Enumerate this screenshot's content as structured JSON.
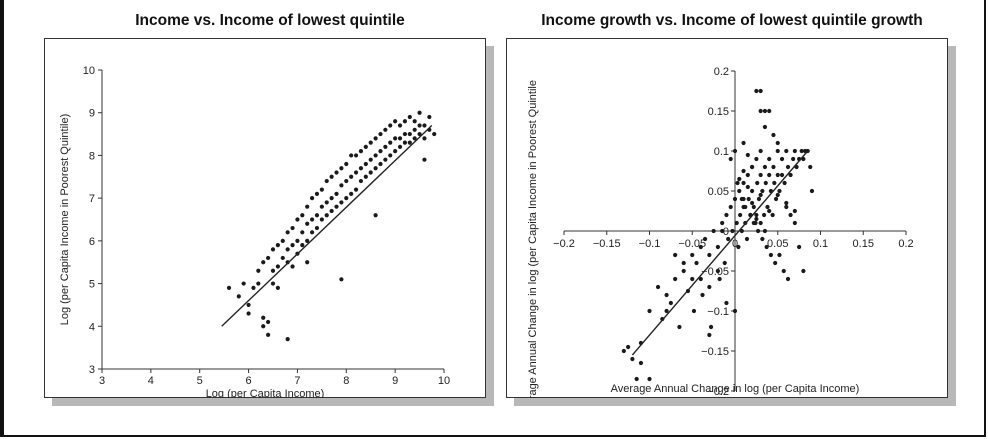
{
  "panels": [
    {
      "title": "Income vs. Income of lowest quintile"
    },
    {
      "title": "Income growth vs. Income of lowest quintile growth"
    }
  ],
  "chart_data": [
    {
      "type": "scatter",
      "title": "Income vs. Income of lowest quintile",
      "xlabel": "Log (per Capita Income)",
      "ylabel": "Log (per Capita Income in Poorest Quintile)",
      "xlim": [
        3,
        10
      ],
      "ylim": [
        3,
        10
      ],
      "xticks": [
        "3",
        "4",
        "5",
        "6",
        "7",
        "8",
        "9",
        "10"
      ],
      "yticks": [
        "3",
        "4",
        "5",
        "6",
        "7",
        "8",
        "9",
        "10"
      ],
      "grid": false,
      "fit_line": [
        [
          5.45,
          4.0
        ],
        [
          9.75,
          8.7
        ]
      ],
      "series": [
        {
          "x": [
            5.6,
            5.8,
            5.9,
            6.0,
            6.1,
            6.2,
            6.2,
            6.3,
            6.3,
            6.4,
            6.4,
            6.5,
            6.5,
            6.5,
            6.6,
            6.6,
            6.7,
            6.7,
            6.8,
            6.8,
            6.8,
            6.9,
            6.9,
            6.9,
            7.0,
            7.0,
            7.0,
            7.1,
            7.1,
            7.1,
            7.2,
            7.2,
            7.2,
            7.3,
            7.3,
            7.3,
            7.4,
            7.4,
            7.4,
            7.5,
            7.5,
            7.5,
            7.6,
            7.6,
            7.6,
            7.7,
            7.7,
            7.7,
            7.8,
            7.8,
            7.8,
            7.9,
            7.9,
            7.9,
            8.0,
            8.0,
            8.0,
            8.1,
            8.1,
            8.1,
            8.2,
            8.2,
            8.2,
            8.3,
            8.3,
            8.3,
            8.4,
            8.4,
            8.4,
            8.5,
            8.5,
            8.5,
            8.6,
            8.6,
            8.6,
            8.7,
            8.7,
            8.7,
            8.8,
            8.8,
            8.8,
            8.9,
            8.9,
            8.9,
            9.0,
            9.0,
            9.0,
            9.1,
            9.1,
            9.1,
            9.2,
            9.2,
            9.2,
            9.3,
            9.3,
            9.3,
            9.4,
            9.4,
            9.4,
            9.5,
            9.5,
            9.5,
            9.6,
            9.6,
            9.7,
            9.7,
            9.8,
            6.3,
            6.4,
            6.8,
            7.9,
            6.0,
            6.6,
            7.2,
            8.6,
            9.6
          ],
          "y": [
            4.9,
            4.7,
            5.0,
            4.5,
            4.9,
            5.3,
            5.0,
            4.2,
            5.5,
            4.1,
            5.6,
            5.3,
            5.8,
            5.0,
            5.4,
            5.9,
            5.6,
            6.0,
            5.5,
            6.2,
            5.8,
            5.9,
            6.3,
            5.4,
            6.0,
            6.5,
            5.7,
            6.2,
            6.6,
            5.9,
            6.4,
            6.8,
            6.0,
            6.5,
            7.0,
            6.2,
            6.6,
            7.1,
            6.3,
            6.8,
            7.2,
            6.5,
            6.9,
            7.4,
            6.6,
            7.0,
            7.5,
            6.7,
            7.1,
            7.6,
            6.8,
            7.3,
            7.7,
            6.9,
            7.4,
            7.8,
            7.0,
            7.5,
            8.0,
            7.1,
            7.6,
            8.0,
            7.2,
            7.7,
            8.1,
            7.4,
            7.8,
            8.2,
            7.5,
            7.9,
            8.3,
            7.6,
            8.0,
            8.4,
            7.7,
            8.1,
            8.5,
            7.8,
            8.2,
            8.6,
            7.9,
            8.3,
            8.7,
            8.0,
            8.4,
            8.8,
            8.1,
            8.4,
            8.7,
            8.2,
            8.5,
            8.8,
            8.3,
            8.5,
            8.9,
            8.3,
            8.6,
            8.8,
            8.4,
            8.7,
            9.0,
            8.5,
            8.7,
            8.4,
            8.9,
            8.6,
            8.5,
            4.0,
            3.8,
            3.7,
            5.1,
            4.3,
            4.9,
            5.5,
            6.6,
            7.9
          ]
        }
      ]
    },
    {
      "type": "scatter",
      "title": "Income growth vs. Income of lowest quintile growth",
      "xlabel": "Average Annual Change in log (per Capita Income)",
      "ylabel": "Average Annual Change in log (per Capita Income in Poorest Quintile",
      "xlim": [
        -0.2,
        0.2
      ],
      "ylim": [
        -0.2,
        0.2
      ],
      "xticks": [
        "−0.2",
        "−0.15",
        "−0.1",
        "−0.05",
        "0",
        "0.05",
        "0.1",
        "0.15",
        "0.2"
      ],
      "yticks": [
        "−0.2",
        "−0.15",
        "−0.1",
        "−0.05",
        "0",
        "0.05",
        "0.1",
        "0.15",
        "0.2"
      ],
      "grid": false,
      "fit_line": [
        [
          -0.12,
          -0.155
        ],
        [
          0.085,
          0.1
        ]
      ],
      "series": [
        {
          "x": [
            -0.125,
            -0.115,
            -0.11,
            -0.1,
            -0.09,
            -0.085,
            -0.08,
            -0.075,
            -0.07,
            -0.065,
            -0.06,
            -0.055,
            -0.05,
            -0.048,
            -0.045,
            -0.04,
            -0.038,
            -0.035,
            -0.03,
            -0.028,
            -0.025,
            -0.02,
            -0.018,
            -0.015,
            -0.012,
            -0.01,
            -0.008,
            -0.005,
            -0.003,
            0.0,
            0.002,
            0.004,
            0.005,
            0.006,
            0.008,
            0.01,
            0.01,
            0.012,
            0.014,
            0.015,
            0.016,
            0.018,
            0.02,
            0.02,
            0.022,
            0.024,
            0.025,
            0.026,
            0.028,
            0.03,
            0.03,
            0.032,
            0.034,
            0.035,
            0.036,
            0.038,
            0.04,
            0.04,
            0.042,
            0.044,
            0.045,
            0.046,
            0.048,
            0.05,
            0.05,
            0.052,
            0.055,
            0.058,
            0.06,
            0.062,
            0.065,
            0.068,
            0.07,
            0.072,
            0.075,
            0.078,
            0.08,
            0.082,
            0.085,
            0.088,
            0.09,
            -0.005,
            0.0,
            0.01,
            0.015,
            0.02,
            0.025,
            0.03,
            0.035,
            0.04,
            0.045,
            0.05,
            0.055,
            0.06,
            0.065,
            0.07,
            0.075,
            0.08,
            0.003,
            0.008,
            0.012,
            0.018,
            0.022,
            0.027,
            0.032,
            0.037,
            0.042,
            0.047,
            0.052,
            0.057,
            0.062,
            0.01,
            0.02,
            0.03,
            0.04,
            0.015,
            0.025,
            0.035,
            -0.02,
            -0.03,
            -0.04,
            -0.01,
            0.0,
            -0.06,
            -0.07,
            0.005,
            0.01,
            -0.015,
            0.025,
            0.03,
            0.05,
            0.06,
            0.07,
            -0.13,
            -0.12,
            -0.11,
            -0.1,
            -0.08,
            -0.05,
            -0.03,
            0.03,
            0.035
          ],
          "y": [
            -0.145,
            -0.185,
            -0.165,
            -0.185,
            -0.07,
            -0.11,
            -0.1,
            -0.09,
            -0.06,
            -0.12,
            -0.05,
            -0.075,
            -0.03,
            -0.1,
            -0.04,
            -0.02,
            -0.08,
            -0.01,
            -0.03,
            -0.12,
            0.0,
            -0.02,
            -0.06,
            0.01,
            -0.04,
            0.02,
            -0.01,
            0.03,
            0.0,
            0.04,
            0.01,
            -0.02,
            0.05,
            0.02,
            0.0,
            0.06,
            0.03,
            0.01,
            -0.01,
            0.07,
            0.04,
            0.02,
            0.08,
            0.05,
            0.03,
            0.01,
            0.09,
            0.06,
            0.04,
            0.1,
            0.07,
            0.05,
            0.02,
            0.08,
            0.06,
            0.03,
            0.09,
            0.07,
            0.05,
            0.02,
            0.08,
            0.06,
            0.04,
            0.1,
            0.07,
            0.05,
            0.09,
            0.06,
            0.1,
            0.08,
            0.07,
            0.09,
            0.1,
            0.08,
            0.09,
            0.1,
            0.09,
            0.1,
            0.1,
            0.08,
            0.05,
            0.09,
            0.1,
            0.11,
            0.095,
            0.08,
            0.175,
            0.15,
            0.13,
            0.15,
            0.12,
            0.11,
            0.07,
            0.03,
            0.02,
            0.01,
            -0.02,
            -0.05,
            0.06,
            0.04,
            0.03,
            0.02,
            0.01,
            0.0,
            -0.01,
            -0.02,
            -0.03,
            -0.04,
            -0.03,
            -0.05,
            -0.06,
            0.04,
            0.035,
            0.045,
            0.025,
            0.055,
            0.015,
            0.0,
            -0.05,
            -0.07,
            -0.06,
            -0.09,
            -0.1,
            -0.04,
            -0.03,
            0.065,
            0.075,
            0.0,
            0.02,
            0.01,
            0.045,
            0.035,
            0.025,
            -0.15,
            -0.16,
            -0.14,
            -0.1,
            -0.08,
            -0.06,
            -0.13,
            0.175,
            0.15
          ]
        }
      ]
    }
  ]
}
